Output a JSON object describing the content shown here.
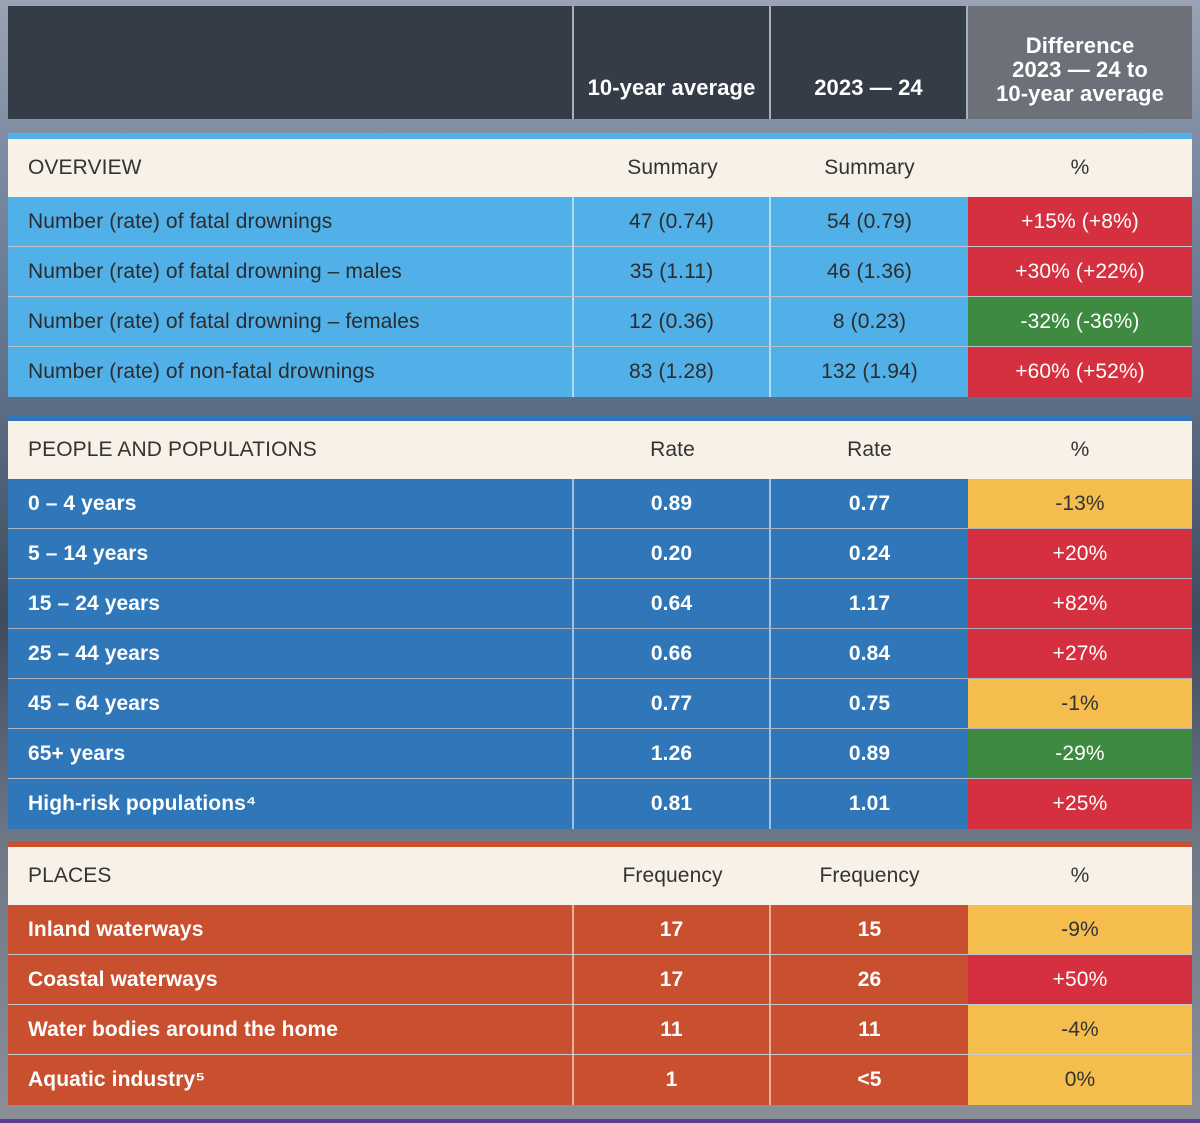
{
  "header": {
    "col1": "",
    "col2": "10-year average",
    "col3": "2023 — 24",
    "col4_lines": [
      "Difference",
      "2023 — 24 to",
      "10-year average"
    ]
  },
  "colors": {
    "overview": "#52b0e8",
    "people": "#2f77b8",
    "places": "#c8502f",
    "increase": "#d53040",
    "decrease_large": "#3f8a41",
    "decrease_small": "#f4bd4e"
  },
  "sections": [
    {
      "title": "OVERVIEW",
      "col2": "Summary",
      "col3": "Summary",
      "col4": "%",
      "rows": [
        {
          "label": "Number (rate) of fatal drownings",
          "avg": "47 (0.74)",
          "current": "54 (0.79)",
          "diff": "+15% (+8%)",
          "status": "red"
        },
        {
          "label": "Number (rate) of fatal drowning – males",
          "avg": "35 (1.11)",
          "current": "46 (1.36)",
          "diff": "+30% (+22%)",
          "status": "red"
        },
        {
          "label": "Number (rate) of fatal drowning – females",
          "avg": "12 (0.36)",
          "current": "8 (0.23)",
          "diff": "-32% (-36%)",
          "status": "green"
        },
        {
          "label": "Number (rate) of non-fatal drownings",
          "avg": "83 (1.28)",
          "current": "132 (1.94)",
          "diff": "+60% (+52%)",
          "status": "red"
        }
      ]
    },
    {
      "title": "PEOPLE AND POPULATIONS",
      "col2": "Rate",
      "col3": "Rate",
      "col4": "%",
      "rows": [
        {
          "label": "0 – 4 years",
          "avg": "0.89",
          "current": "0.77",
          "diff": "-13%",
          "status": "yellow"
        },
        {
          "label": "5 – 14 years",
          "avg": "0.20",
          "current": "0.24",
          "diff": "+20%",
          "status": "red"
        },
        {
          "label": "15 – 24 years",
          "avg": "0.64",
          "current": "1.17",
          "diff": "+82%",
          "status": "red"
        },
        {
          "label": "25 – 44 years",
          "avg": "0.66",
          "current": "0.84",
          "diff": "+27%",
          "status": "red"
        },
        {
          "label": "45 – 64 years",
          "avg": "0.77",
          "current": "0.75",
          "diff": "-1%",
          "status": "yellow"
        },
        {
          "label": "65+ years",
          "avg": "1.26",
          "current": "0.89",
          "diff": "-29%",
          "status": "green"
        },
        {
          "label": "High-risk populations⁴",
          "avg": "0.81",
          "current": "1.01",
          "diff": "+25%",
          "status": "red"
        }
      ]
    },
    {
      "title": "PLACES",
      "col2": "Frequency",
      "col3": "Frequency",
      "col4": "%",
      "rows": [
        {
          "label": "Inland waterways",
          "avg": "17",
          "current": "15",
          "diff": "-9%",
          "status": "yellow"
        },
        {
          "label": "Coastal waterways",
          "avg": "17",
          "current": "26",
          "diff": "+50%",
          "status": "red"
        },
        {
          "label": "Water bodies around the home",
          "avg": "11",
          "current": "11",
          "diff": "-4%",
          "status": "yellow"
        },
        {
          "label": "Aquatic industry⁵",
          "avg": "1",
          "current": "<5",
          "diff": "0%",
          "status": "yellow"
        }
      ]
    }
  ]
}
